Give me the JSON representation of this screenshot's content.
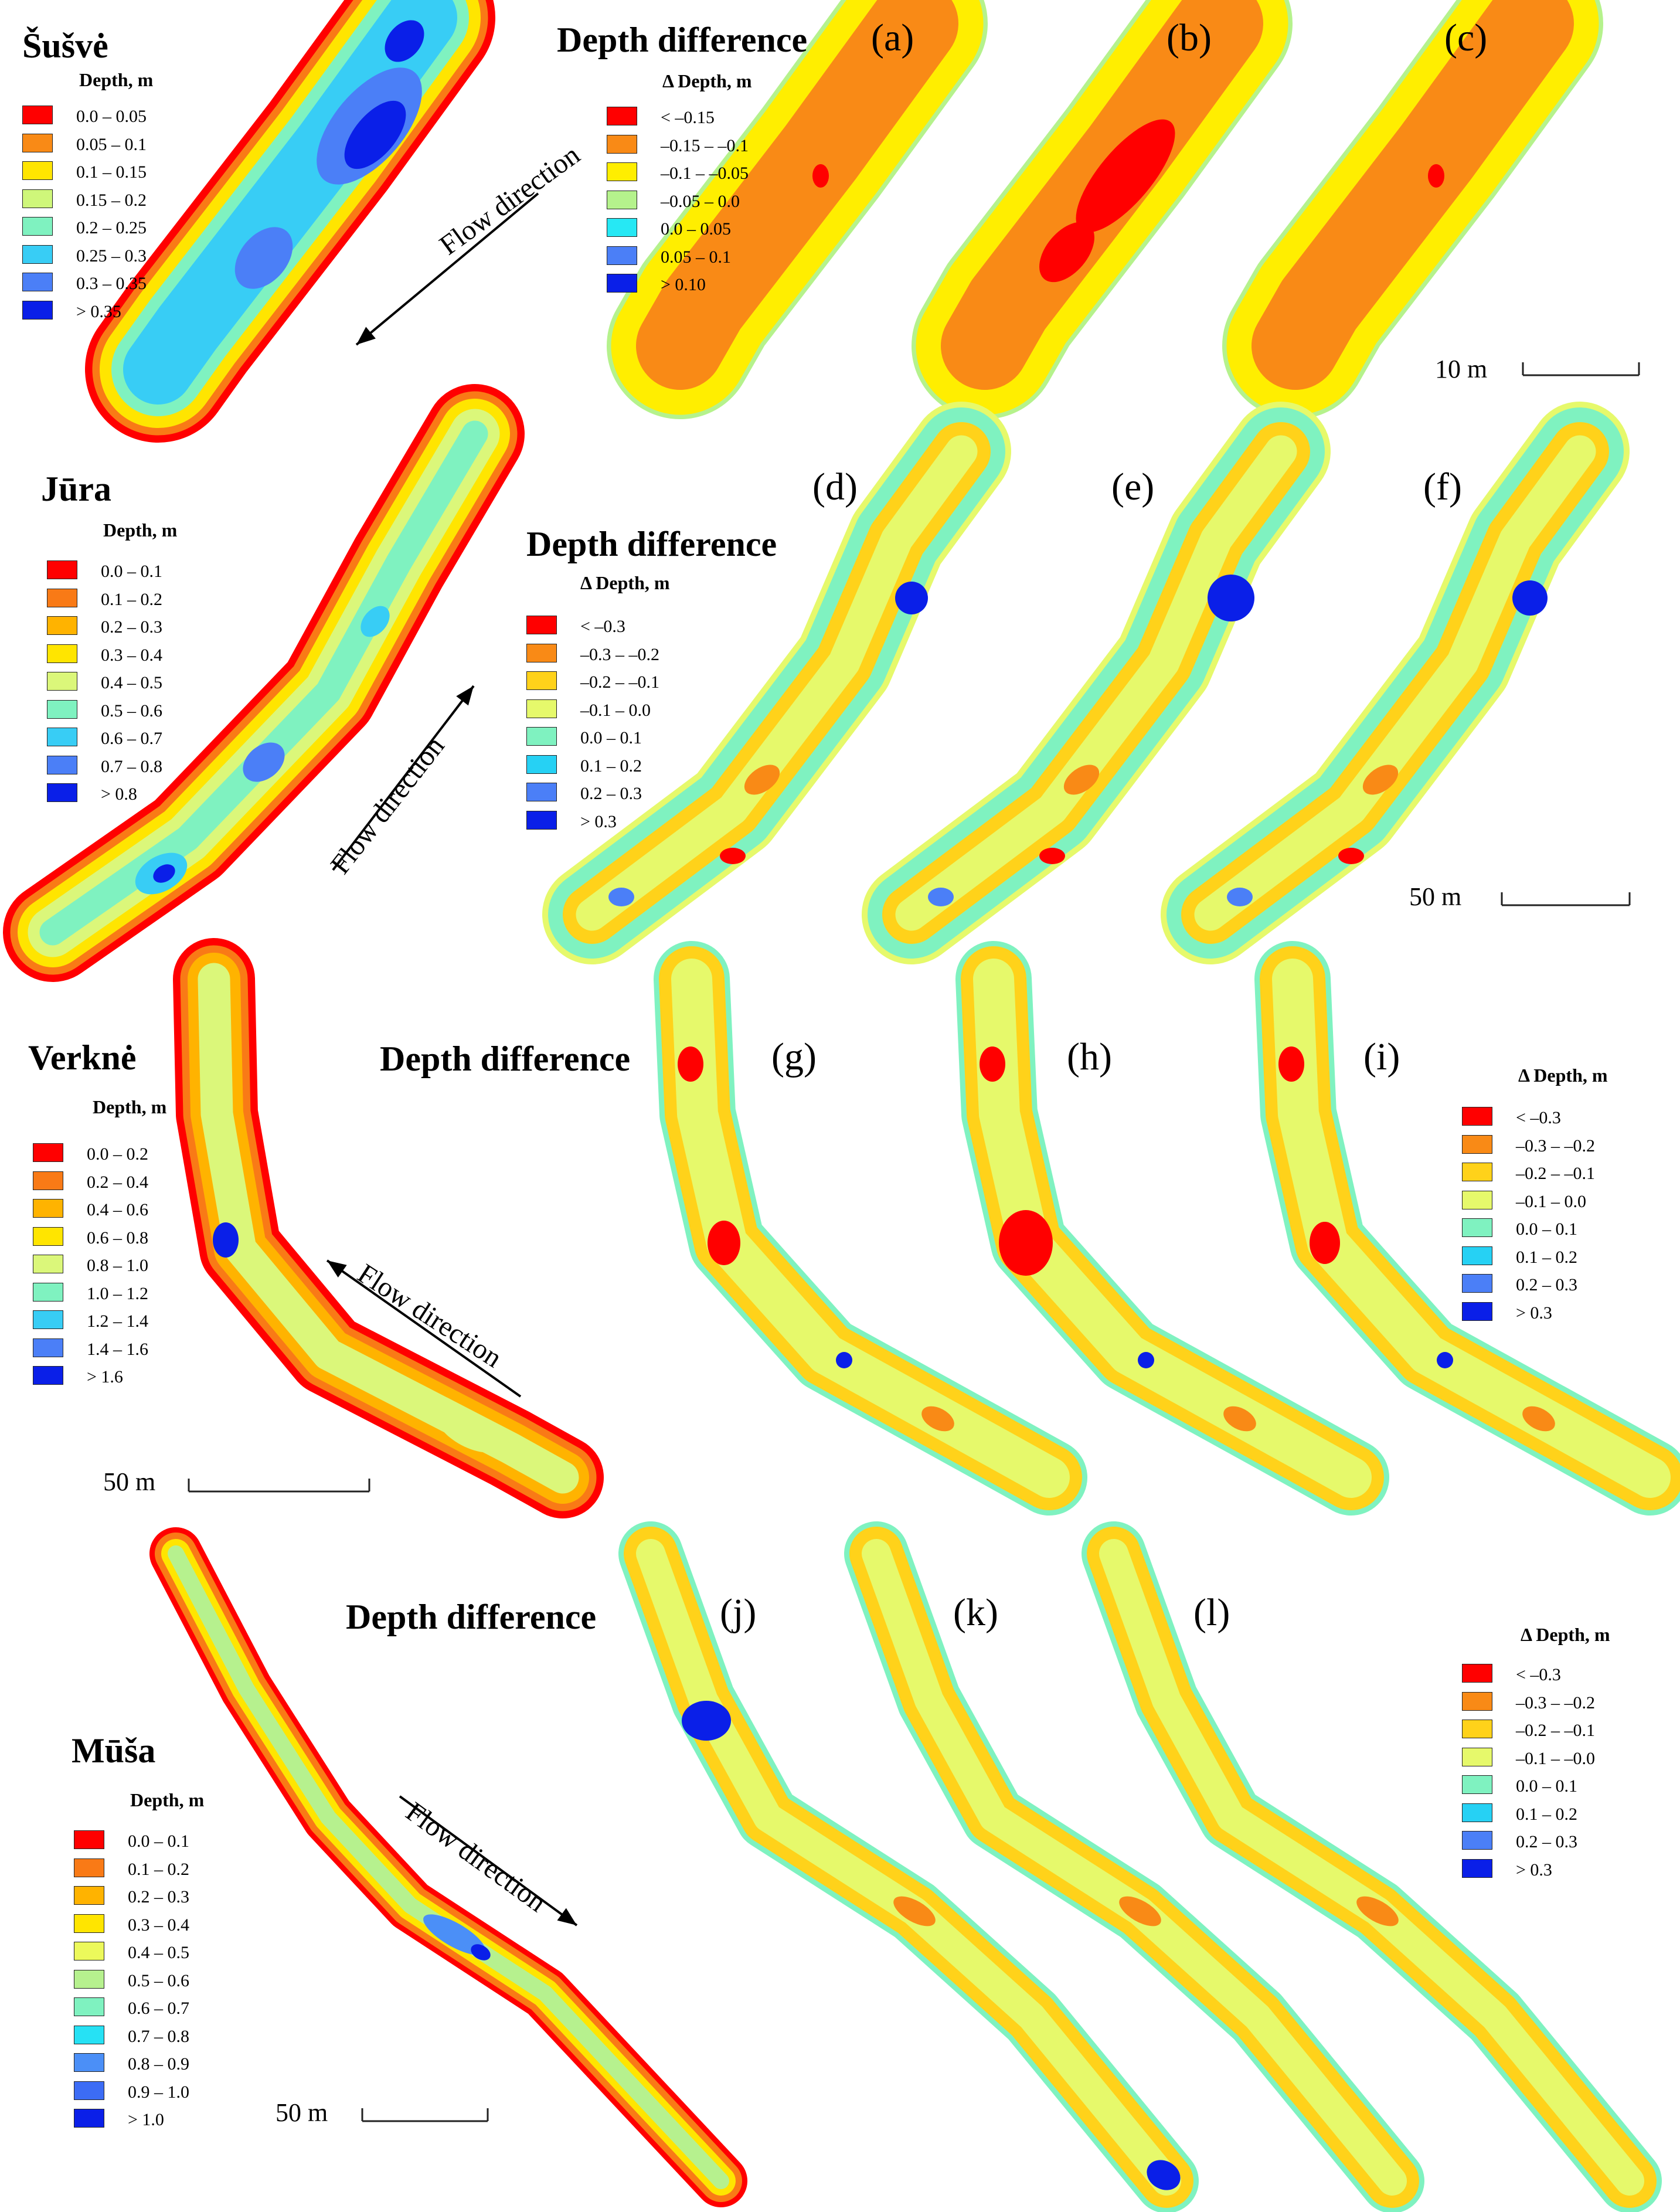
{
  "sites": [
    {
      "name": "Šušvė",
      "legend_title": "Depth, m",
      "depth_classes": [
        "0.0 – 0.05",
        "0.05 – 0.1",
        "0.1 – 0.15",
        "0.15 – 0.2",
        "0.2 – 0.25",
        "0.25 – 0.3",
        "0.3 – 0.35",
        "> 0.35"
      ],
      "flow_label": "Flow direction",
      "diff_heading": "Depth difference",
      "diff_legend_title": "Δ Depth, m",
      "diff_classes": [
        "< –0.15",
        "–0.15 – –0.1",
        "–0.1 – –0.05",
        "–0.05 – 0.0",
        "0.0 – 0.05",
        "0.05 – 0.1",
        "> 0.10"
      ],
      "panels": [
        "(a)",
        "(b)",
        "(c)"
      ],
      "scale_label": "10 m"
    },
    {
      "name": "Jūra",
      "legend_title": "Depth, m",
      "depth_classes": [
        "0.0 – 0.1",
        "0.1 – 0.2",
        "0.2 – 0.3",
        "0.3 – 0.4",
        "0.4 – 0.5",
        "0.5 – 0.6",
        "0.6 – 0.7",
        "0.7 – 0.8",
        "> 0.8"
      ],
      "flow_label": "Flow direction",
      "diff_heading": "Depth difference",
      "diff_legend_title": "Δ Depth, m",
      "diff_classes": [
        "< –0.3",
        "–0.3 – –0.2",
        "–0.2 – –0.1",
        "–0.1 – 0.0",
        "0.0 – 0.1",
        "0.1 – 0.2",
        "0.2 – 0.3",
        "> 0.3"
      ],
      "panels": [
        "(d)",
        "(e)",
        "(f)"
      ],
      "scale_label": "50 m"
    },
    {
      "name": "Verknė",
      "legend_title": "Depth, m",
      "depth_classes": [
        "0.0 – 0.2",
        "0.2 – 0.4",
        "0.4 – 0.6",
        "0.6 – 0.8",
        "0.8 – 1.0",
        "1.0 – 1.2",
        "1.2 – 1.4",
        "1.4 – 1.6",
        "> 1.6"
      ],
      "flow_label": "Flow direction",
      "diff_heading": "Depth difference",
      "diff_legend_title": "Δ Depth, m",
      "diff_classes": [
        "< –0.3",
        "–0.3 – –0.2",
        "–0.2 – –0.1",
        "–0.1 – 0.0",
        "0.0 – 0.1",
        "0.1 – 0.2",
        "0.2 – 0.3",
        "> 0.3"
      ],
      "panels": [
        "(g)",
        "(h)",
        "(i)"
      ],
      "scale_label": "50 m"
    },
    {
      "name": "Mūša",
      "legend_title": "Depth, m",
      "depth_classes": [
        "0.0 – 0.1",
        "0.1 – 0.2",
        "0.2 – 0.3",
        "0.3 – 0.4",
        "0.4 – 0.5",
        "0.5 – 0.6",
        "0.6 – 0.7",
        "0.7 – 0.8",
        "0.8 – 0.9",
        "0.9 – 1.0",
        "> 1.0"
      ],
      "flow_label": "Flow direction",
      "diff_heading": "Depth difference",
      "diff_legend_title": "Δ Depth, m",
      "diff_classes": [
        "< –0.3",
        "–0.3 – –0.2",
        "–0.2 – –0.1",
        "–0.1 – –0.0",
        "0.0 – 0.1",
        "0.1 – 0.2",
        "0.2 – 0.3",
        "> 0.3"
      ],
      "panels": [
        "(j)",
        "(k)",
        "(l)"
      ],
      "scale_label": "50 m"
    }
  ],
  "colors": {
    "depth_ramp_11": [
      "#ff0000",
      "#f97a16",
      "#ffb300",
      "#ffe500",
      "#ecf95b",
      "#b6f18e",
      "#7ff2c0",
      "#26e1f4",
      "#4b8ff7",
      "#3c6cf5",
      "#0a1fe8"
    ],
    "depth_ramp_9": [
      "#ff0000",
      "#f97a16",
      "#ffb300",
      "#ffe500",
      "#dbf77a",
      "#7ff2c0",
      "#38cdf5",
      "#4b7ff7",
      "#0a1fe8"
    ],
    "depth_ramp_8": [
      "#ff0000",
      "#f98a16",
      "#ffe500",
      "#cff77a",
      "#7ff2c0",
      "#38cdf5",
      "#4b7ff7",
      "#0a1fe8"
    ],
    "diff_ramp_7": [
      "#ff0000",
      "#f98a16",
      "#ffee00",
      "#b5f28c",
      "#26e8f4",
      "#4b7ff7",
      "#0a1fe8"
    ],
    "diff_ramp_8": [
      "#ff0000",
      "#f98a16",
      "#ffd21a",
      "#e6f96b",
      "#7ff2c0",
      "#26d1f4",
      "#4b7ff7",
      "#0a1fe8"
    ],
    "scale_bar": "#222222"
  }
}
